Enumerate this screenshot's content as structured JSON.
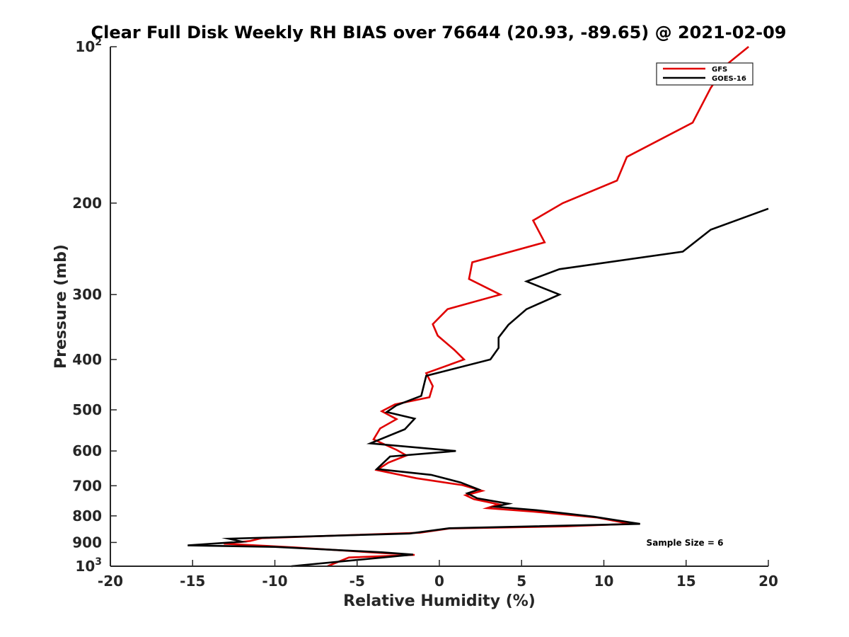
{
  "chart_data": {
    "type": "line",
    "title": "Clear Full Disk Weekly RH BIAS over 76644 (20.93, -89.65) @ 2021-02-09",
    "xlabel": "Relative Humidity (%)",
    "ylabel": "Pressure (mb)",
    "xlim": [
      -20,
      20
    ],
    "ylim": [
      100,
      1000
    ],
    "yscale": "log",
    "y_reversed": true,
    "x_ticks": [
      "-20",
      "-15",
      "-10",
      "-5",
      "0",
      "5",
      "10",
      "15",
      "20"
    ],
    "y_ticks": [
      {
        "value": 100,
        "base": "10",
        "exp": "2"
      },
      {
        "value": 200,
        "label": "200"
      },
      {
        "value": 300,
        "label": "300"
      },
      {
        "value": 400,
        "label": "400"
      },
      {
        "value": 500,
        "label": "500"
      },
      {
        "value": 600,
        "label": "600"
      },
      {
        "value": 700,
        "label": "700"
      },
      {
        "value": 800,
        "label": "800"
      },
      {
        "value": 900,
        "label": "900"
      },
      {
        "value": 1000,
        "base": "10",
        "exp": "3"
      }
    ],
    "legend_position": "top-right",
    "series": [
      {
        "name": "GFS",
        "color": "#e00000",
        "points": [
          [
            18.8,
            100
          ],
          [
            17.5,
            108
          ],
          [
            16.5,
            120
          ],
          [
            15.4,
            140
          ],
          [
            11.4,
            163
          ],
          [
            10.8,
            181
          ],
          [
            7.5,
            200
          ],
          [
            5.7,
            216
          ],
          [
            6.4,
            238
          ],
          [
            2.0,
            260
          ],
          [
            1.8,
            280
          ],
          [
            3.7,
            300
          ],
          [
            0.5,
            320
          ],
          [
            -0.4,
            342
          ],
          [
            -0.1,
            360
          ],
          [
            0.9,
            383
          ],
          [
            1.5,
            400
          ],
          [
            -0.8,
            425
          ],
          [
            -0.4,
            450
          ],
          [
            -0.6,
            473
          ],
          [
            -2.7,
            488
          ],
          [
            -3.5,
            503
          ],
          [
            -2.6,
            521
          ],
          [
            -3.6,
            543
          ],
          [
            -4.0,
            570
          ],
          [
            -2.6,
            597
          ],
          [
            -2.0,
            612
          ],
          [
            -3.1,
            632
          ],
          [
            -3.8,
            653
          ],
          [
            -1.4,
            677
          ],
          [
            1.4,
            698
          ],
          [
            2.6,
            716
          ],
          [
            1.6,
            730
          ],
          [
            2.1,
            743
          ],
          [
            3.6,
            760
          ],
          [
            2.9,
            773
          ],
          [
            5.7,
            785
          ],
          [
            9.6,
            806
          ],
          [
            11.6,
            829
          ],
          [
            7.6,
            838
          ],
          [
            0.6,
            846
          ],
          [
            -1.2,
            862
          ],
          [
            -10.8,
            883
          ],
          [
            -11.5,
            894
          ],
          [
            -13.1,
            905
          ],
          [
            -8.8,
            920
          ],
          [
            -6.0,
            932
          ],
          [
            -3.5,
            943
          ],
          [
            -1.5,
            951
          ],
          [
            -5.5,
            962
          ],
          [
            -6.8,
            1000
          ]
        ]
      },
      {
        "name": "GOES-16",
        "color": "#000000",
        "points": [
          [
            20.0,
            205
          ],
          [
            16.5,
            225
          ],
          [
            14.8,
            248
          ],
          [
            7.3,
            268
          ],
          [
            5.3,
            283
          ],
          [
            7.3,
            300
          ],
          [
            5.3,
            320
          ],
          [
            4.2,
            343
          ],
          [
            3.6,
            363
          ],
          [
            3.6,
            380
          ],
          [
            3.1,
            400
          ],
          [
            -0.8,
            430
          ],
          [
            -1.1,
            470
          ],
          [
            -2.6,
            490
          ],
          [
            -3.2,
            505
          ],
          [
            -1.5,
            520
          ],
          [
            -2.1,
            545
          ],
          [
            -4.2,
            580
          ],
          [
            1.0,
            600
          ],
          [
            -3.0,
            615
          ],
          [
            -3.8,
            650
          ],
          [
            -0.5,
            667
          ],
          [
            1.3,
            690
          ],
          [
            2.4,
            712
          ],
          [
            1.7,
            724
          ],
          [
            2.3,
            740
          ],
          [
            4.2,
            758
          ],
          [
            3.4,
            768
          ],
          [
            5.9,
            780
          ],
          [
            9.4,
            803
          ],
          [
            12.2,
            829
          ],
          [
            0.6,
            845
          ],
          [
            -1.8,
            865
          ],
          [
            -12.8,
            885
          ],
          [
            -12.0,
            897
          ],
          [
            -15.3,
            912
          ],
          [
            -10.0,
            918
          ],
          [
            -3.5,
            940
          ],
          [
            -1.6,
            950
          ],
          [
            -9.0,
            1000
          ]
        ]
      }
    ],
    "annotation": "Sample Size = 6"
  }
}
